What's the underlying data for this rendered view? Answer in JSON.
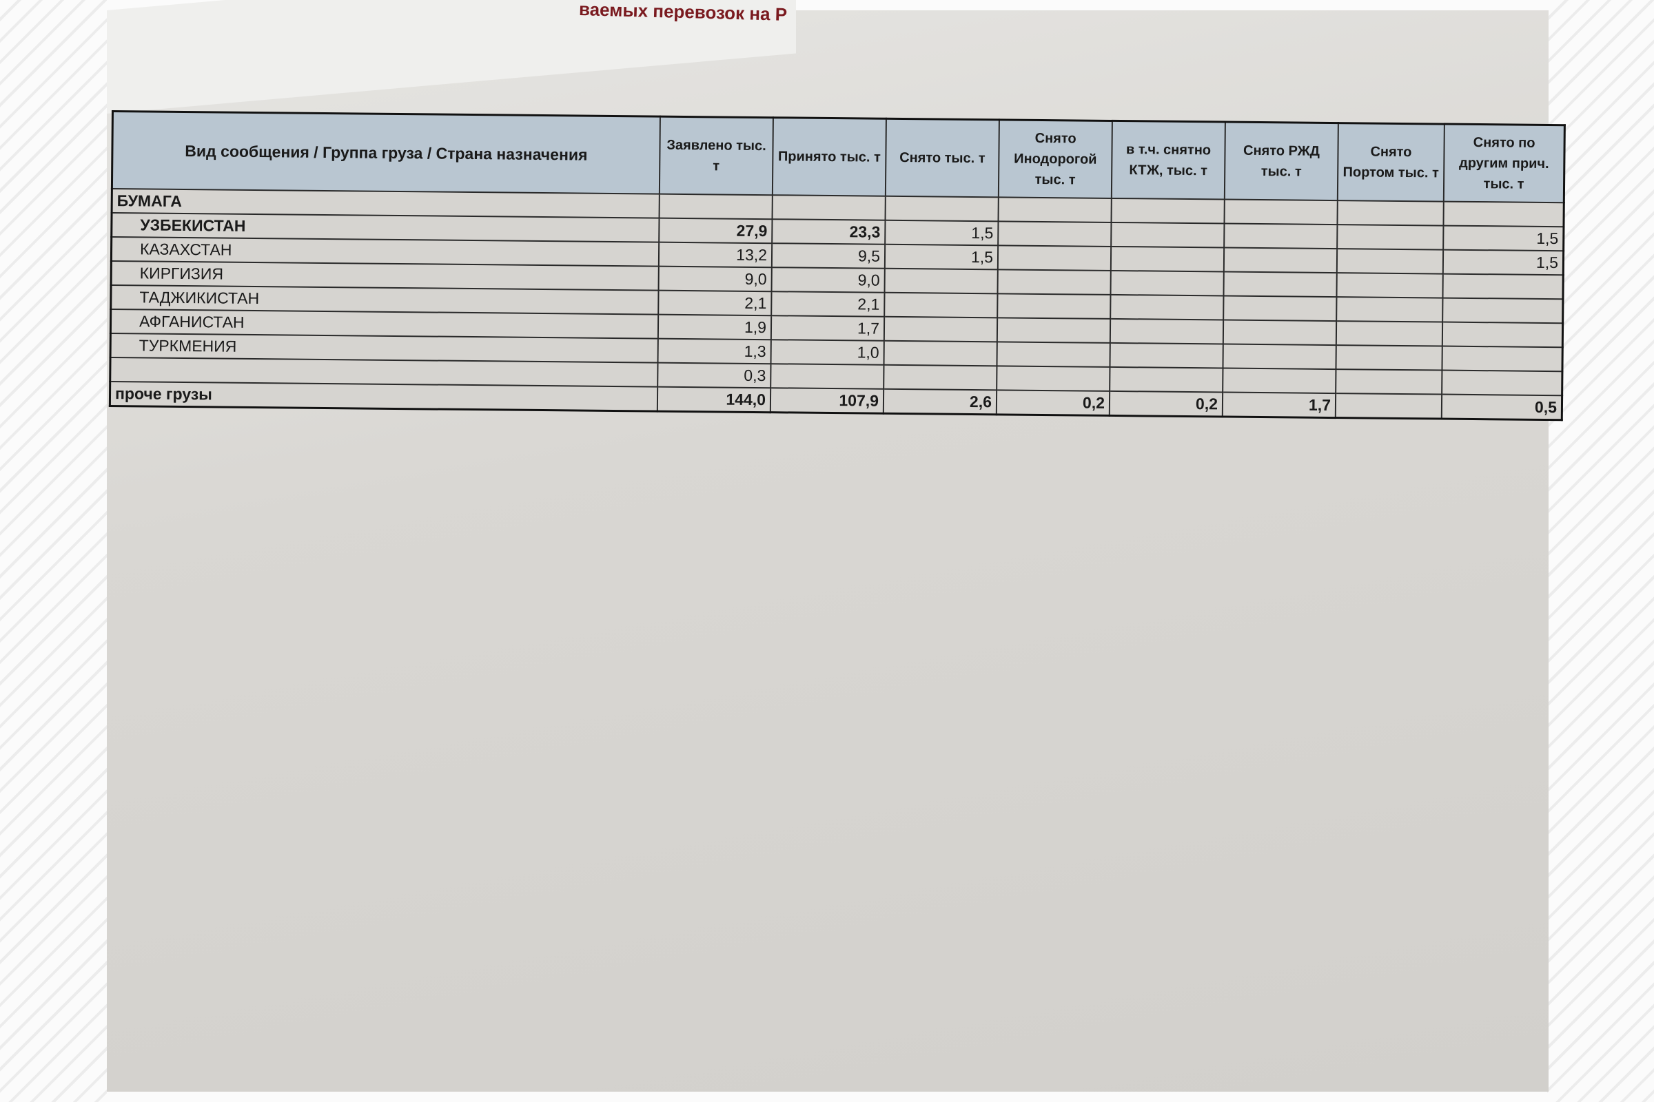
{
  "document": {
    "cut_title": "ваемых перевозок на Р",
    "table": {
      "headers": [
        "Вид сообщения / Группа груза / Страна назначения",
        "Заявлено тыс. т",
        "Принято тыс. т",
        "Снято тыс. т",
        "Снято Инодорогой тыс. т",
        "в т.ч. снятно КТЖ, тыс. т",
        "Снято РЖД тыс. т",
        "Снято Портом тыс. т",
        "Снято по другим прич. тыс. т"
      ],
      "group": "БУМАГА",
      "rows": [
        [
          "УЗБЕКИСТАН",
          "27,9",
          "23,3",
          "1,5",
          "",
          "",
          "",
          "",
          "1,5"
        ],
        [
          "КАЗАХСТАН",
          "13,2",
          "9,5",
          "1,5",
          "",
          "",
          "",
          "",
          "1,5"
        ],
        [
          "КИРГИЗИЯ",
          "9,0",
          "9,0",
          "",
          "",
          "",
          "",
          "",
          ""
        ],
        [
          "ТАДЖИКИСТАН",
          "2,1",
          "2,1",
          "",
          "",
          "",
          "",
          "",
          ""
        ],
        [
          "АФГАНИСТАН",
          "1,9",
          "1,7",
          "",
          "",
          "",
          "",
          "",
          ""
        ],
        [
          "ТУРКМЕНИЯ",
          "1,3",
          "1,0",
          "",
          "",
          "",
          "",
          "",
          ""
        ],
        [
          "",
          "0,3",
          "",
          "",
          "",
          "",
          "",
          "",
          ""
        ]
      ],
      "total": [
        "проче грузы",
        "144,0",
        "107,9",
        "2,6",
        "0,2",
        "0,2",
        "1,7",
        "",
        "0,5"
      ]
    }
  }
}
